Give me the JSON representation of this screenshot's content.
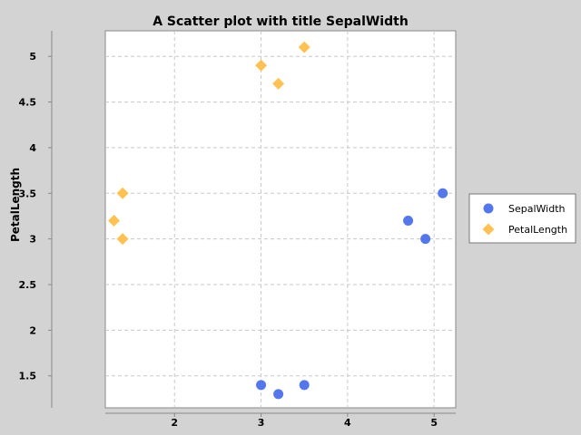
{
  "chart_data": {
    "type": "scatter",
    "title": "A Scatter plot with title SepalWidth",
    "xlabel": "",
    "ylabel": "PetalLength",
    "xlim": [
      1.2,
      5.25
    ],
    "ylim": [
      1.15,
      5.28
    ],
    "xticks": [
      2,
      3,
      4,
      5
    ],
    "yticks": [
      1.5,
      2,
      2.5,
      3,
      3.5,
      4,
      4.5,
      5
    ],
    "xtick_labels": [
      "2",
      "3",
      "4",
      "5"
    ],
    "ytick_labels": [
      "1.5",
      "2",
      "2.5",
      "3",
      "3.5",
      "4",
      "4.5",
      "5"
    ],
    "grid": true,
    "legend_position": "right",
    "series": [
      {
        "name": "SepalWidth",
        "marker": "circle",
        "color": "#5577ee",
        "points": [
          [
            5.1,
            3.5
          ],
          [
            4.9,
            3.0
          ],
          [
            4.7,
            3.2
          ],
          [
            3.0,
            1.4
          ],
          [
            3.2,
            1.3
          ],
          [
            3.5,
            1.4
          ]
        ]
      },
      {
        "name": "PetalLength",
        "marker": "diamond",
        "color": "#ffc252",
        "points": [
          [
            1.4,
            3.5
          ],
          [
            1.4,
            3.0
          ],
          [
            1.3,
            3.2
          ],
          [
            3.0,
            4.9
          ],
          [
            3.2,
            4.7
          ],
          [
            3.5,
            5.1
          ]
        ]
      }
    ]
  }
}
